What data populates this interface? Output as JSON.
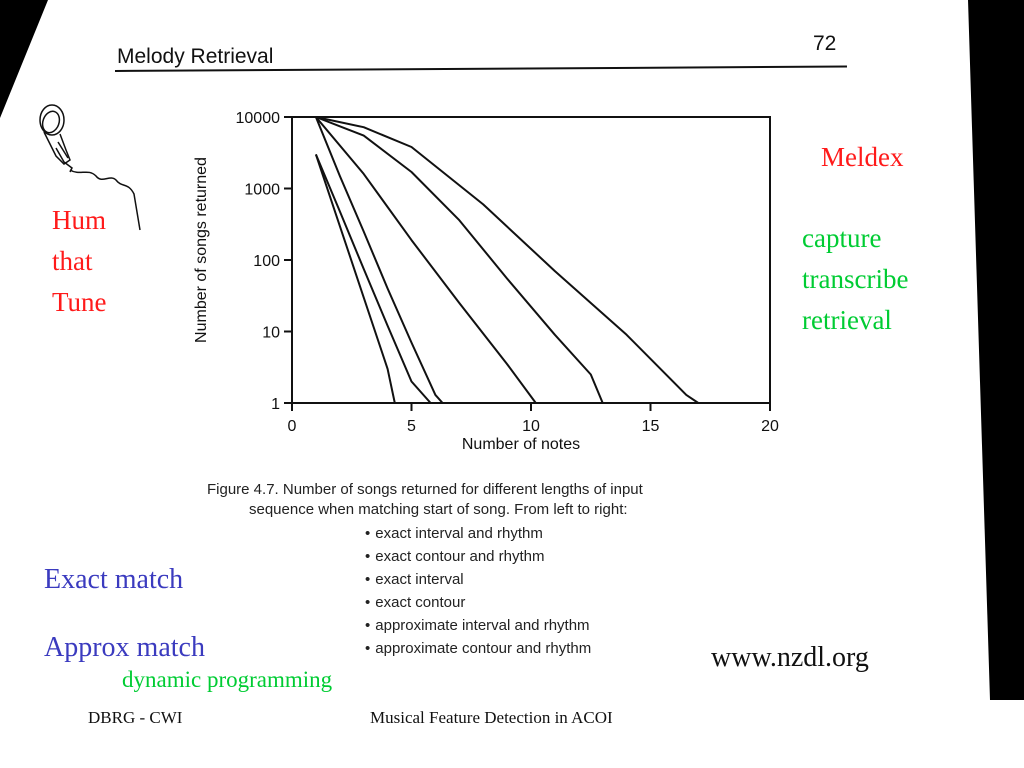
{
  "slide": {
    "scan_title": "Melody Retrieval",
    "page_number": "72",
    "hum_lines": [
      "Hum",
      "that",
      "Tune"
    ],
    "meldex": "Meldex",
    "stages": [
      "capture",
      "transcribe",
      "retrieval"
    ],
    "exact_match": "Exact match",
    "approx_match": "Approx match",
    "dynamic_programming": "dynamic programming",
    "url": "www.nzdl.org",
    "footer_left": "DBRG - CWI",
    "footer_right": "Musical Feature Detection in ACOI"
  },
  "figure_caption": {
    "line1": "Figure 4.7. Number of songs returned for different lengths of input",
    "line2": "sequence when matching start of song. From left to right:",
    "items": [
      "exact interval and rhythm",
      "exact contour and rhythm",
      "exact interval",
      "exact contour",
      "approximate interval and rhythm",
      "approximate contour and rhythm"
    ]
  },
  "colors": {
    "red_text": "#ff1a1a",
    "green_text": "#00cc33",
    "blue_text": "#3b3bbf",
    "ink": "#111111"
  },
  "chart_data": {
    "type": "line",
    "title": "",
    "xlabel": "Number of notes",
    "ylabel": "Number of songs returned",
    "xlim": [
      0,
      20
    ],
    "ylim": [
      1,
      10000
    ],
    "yscale": "log",
    "x_ticks": [
      0,
      5,
      10,
      15,
      20
    ],
    "x_tick_labels": [
      "0",
      "5",
      "10",
      "15",
      "20"
    ],
    "y_ticks": [
      1,
      10,
      100,
      1000,
      10000
    ],
    "y_tick_labels": [
      "1",
      "10",
      "100",
      "1000",
      "10000"
    ],
    "grid": false,
    "legend": "none",
    "series": [
      {
        "x": [
          1,
          2,
          3,
          4,
          4.3
        ],
        "y": [
          3000,
          300,
          30,
          3,
          1
        ]
      },
      {
        "x": [
          1,
          2,
          3,
          4,
          5,
          5.8
        ],
        "y": [
          3000,
          480,
          75,
          12,
          2,
          1
        ]
      },
      {
        "x": [
          1,
          2,
          3,
          4,
          5,
          6,
          6.3
        ],
        "y": [
          10000,
          1500,
          250,
          40,
          7,
          1.3,
          1
        ]
      },
      {
        "x": [
          1,
          3,
          5,
          7,
          9,
          10.2
        ],
        "y": [
          10000,
          1600,
          190,
          25,
          3.5,
          1
        ]
      },
      {
        "x": [
          1,
          3,
          5,
          7,
          9,
          11,
          12.5,
          13
        ],
        "y": [
          10000,
          5500,
          1700,
          360,
          55,
          9,
          2.5,
          1
        ]
      },
      {
        "x": [
          1,
          3,
          5,
          8,
          11,
          14,
          16.5,
          17
        ],
        "y": [
          10000,
          7200,
          3800,
          600,
          70,
          9,
          1.3,
          1
        ]
      }
    ]
  }
}
